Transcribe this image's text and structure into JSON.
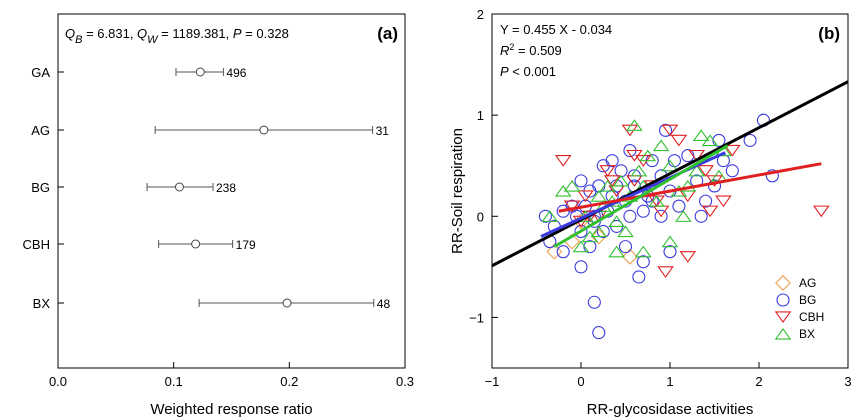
{
  "chart_data": [
    {
      "type": "forest",
      "panel_label": "(a)",
      "stats": {
        "QB": "6.831",
        "QW": "1189.381",
        "P": "0.328"
      },
      "xlabel": "Weighted response ratio",
      "xlim": [
        0.0,
        0.3
      ],
      "xticks": [
        "0.0",
        "0.1",
        "0.2",
        "0.3"
      ],
      "categories": [
        "GA",
        "AG",
        "BG",
        "CBH",
        "BX"
      ],
      "rows": [
        {
          "label": "GA",
          "mean": 0.123,
          "lo": 0.102,
          "hi": 0.143,
          "n": "496"
        },
        {
          "label": "AG",
          "mean": 0.178,
          "lo": 0.084,
          "hi": 0.272,
          "n": "31"
        },
        {
          "label": "BG",
          "mean": 0.105,
          "lo": 0.077,
          "hi": 0.134,
          "n": "238"
        },
        {
          "label": "CBH",
          "mean": 0.119,
          "lo": 0.087,
          "hi": 0.151,
          "n": "179"
        },
        {
          "label": "BX",
          "mean": 0.198,
          "lo": 0.122,
          "hi": 0.273,
          "n": "48"
        }
      ]
    },
    {
      "type": "scatter",
      "panel_label": "(b)",
      "equation": "Y = 0.455 X - 0.034",
      "r2_prefix": "R",
      "r2_value": " = 0.509",
      "p_prefix": "P",
      "p_value": " < 0.001",
      "xlabel": "RR-glycosidase activities",
      "ylabel": "RR-Soil respiration",
      "xlim": [
        -1,
        3
      ],
      "ylim": [
        -1.5,
        2
      ],
      "xticks": [
        "-1",
        "0",
        "1",
        "2",
        "3"
      ],
      "yticks": [
        "-1",
        "0",
        "1",
        "2"
      ],
      "legend_position": "bottom-right",
      "overall_fit": {
        "slope": 0.455,
        "intercept": -0.034,
        "x_range": [
          -1,
          3
        ],
        "color": "#000000"
      },
      "series": [
        {
          "name": "AG",
          "marker": "diamond",
          "color": "#f0a050",
          "points": [
            [
              -0.3,
              -0.35
            ],
            [
              -0.1,
              -0.25
            ],
            [
              0.0,
              -0.05
            ],
            [
              0.2,
              -0.2
            ],
            [
              0.55,
              -0.4
            ]
          ],
          "fit": null
        },
        {
          "name": "BG",
          "marker": "circle",
          "color": "#3a3ae0",
          "points": [
            [
              -0.4,
              0.0
            ],
            [
              -0.35,
              -0.25
            ],
            [
              -0.3,
              -0.1
            ],
            [
              -0.2,
              0.05
            ],
            [
              -0.2,
              -0.35
            ],
            [
              -0.1,
              0.1
            ],
            [
              -0.05,
              0.0
            ],
            [
              0.0,
              0.35
            ],
            [
              0.0,
              -0.15
            ],
            [
              0.0,
              -0.5
            ],
            [
              0.05,
              0.1
            ],
            [
              0.1,
              -0.3
            ],
            [
              0.1,
              0.25
            ],
            [
              0.15,
              0.0
            ],
            [
              0.15,
              -0.05
            ],
            [
              0.15,
              -0.85
            ],
            [
              0.2,
              -1.15
            ],
            [
              0.2,
              0.3
            ],
            [
              0.25,
              0.5
            ],
            [
              0.25,
              -0.15
            ],
            [
              0.3,
              0.05
            ],
            [
              0.35,
              0.2
            ],
            [
              0.35,
              0.55
            ],
            [
              0.4,
              -0.1
            ],
            [
              0.4,
              0.3
            ],
            [
              0.45,
              0.45
            ],
            [
              0.5,
              -0.3
            ],
            [
              0.5,
              0.15
            ],
            [
              0.55,
              0.0
            ],
            [
              0.55,
              0.65
            ],
            [
              0.6,
              0.4
            ],
            [
              0.6,
              0.3
            ],
            [
              0.65,
              -0.6
            ],
            [
              0.7,
              0.05
            ],
            [
              0.7,
              -0.45
            ],
            [
              0.75,
              0.2
            ],
            [
              0.8,
              0.55
            ],
            [
              0.8,
              0.15
            ],
            [
              0.9,
              0.0
            ],
            [
              0.9,
              0.4
            ],
            [
              0.95,
              0.85
            ],
            [
              1.0,
              0.25
            ],
            [
              1.0,
              -0.35
            ],
            [
              1.05,
              0.55
            ],
            [
              1.1,
              0.1
            ],
            [
              1.2,
              0.6
            ],
            [
              1.3,
              0.35
            ],
            [
              1.35,
              0.0
            ],
            [
              1.4,
              0.15
            ],
            [
              1.5,
              0.3
            ],
            [
              1.55,
              0.75
            ],
            [
              1.6,
              0.55
            ],
            [
              1.7,
              0.45
            ],
            [
              1.9,
              0.75
            ],
            [
              2.05,
              0.95
            ],
            [
              2.15,
              0.4
            ]
          ],
          "fit": {
            "x_range": [
              -0.45,
              1.62
            ],
            "y_range": [
              -0.2,
              0.63
            ]
          }
        },
        {
          "name": "CBH",
          "marker": "triangle-down",
          "color": "#e02020",
          "points": [
            [
              -0.2,
              0.55
            ],
            [
              -0.1,
              0.1
            ],
            [
              0.0,
              -0.05
            ],
            [
              0.05,
              0.2
            ],
            [
              0.1,
              0.0
            ],
            [
              0.2,
              0.0
            ],
            [
              0.3,
              0.45
            ],
            [
              0.35,
              0.35
            ],
            [
              0.4,
              0.25
            ],
            [
              0.55,
              0.85
            ],
            [
              0.6,
              0.6
            ],
            [
              0.6,
              0.35
            ],
            [
              0.7,
              0.55
            ],
            [
              0.8,
              0.3
            ],
            [
              0.85,
              0.15
            ],
            [
              0.9,
              0.05
            ],
            [
              0.95,
              -0.55
            ],
            [
              1.0,
              0.85
            ],
            [
              1.1,
              0.75
            ],
            [
              1.2,
              0.2
            ],
            [
              1.2,
              -0.4
            ],
            [
              1.3,
              0.6
            ],
            [
              1.4,
              0.45
            ],
            [
              1.45,
              0.05
            ],
            [
              1.5,
              0.35
            ],
            [
              1.6,
              0.15
            ],
            [
              1.7,
              0.65
            ],
            [
              2.7,
              0.05
            ]
          ],
          "fit": {
            "x_range": [
              -0.25,
              2.7
            ],
            "y_range": [
              0.05,
              0.52
            ]
          }
        },
        {
          "name": "BX",
          "marker": "triangle-up",
          "color": "#30c030",
          "points": [
            [
              -0.35,
              0.0
            ],
            [
              -0.2,
              0.25
            ],
            [
              -0.1,
              0.3
            ],
            [
              0.0,
              -0.3
            ],
            [
              0.05,
              0.0
            ],
            [
              0.1,
              -0.2
            ],
            [
              0.2,
              0.2
            ],
            [
              0.25,
              0.1
            ],
            [
              0.3,
              0.3
            ],
            [
              0.35,
              0.15
            ],
            [
              0.4,
              -0.05
            ],
            [
              0.45,
              0.35
            ],
            [
              0.5,
              -0.15
            ],
            [
              0.55,
              0.2
            ],
            [
              0.6,
              0.9
            ],
            [
              0.65,
              0.45
            ],
            [
              0.7,
              0.3
            ],
            [
              0.75,
              0.6
            ],
            [
              0.85,
              0.15
            ],
            [
              0.9,
              0.7
            ],
            [
              1.0,
              0.5
            ],
            [
              1.1,
              0.25
            ],
            [
              1.15,
              0.0
            ],
            [
              1.2,
              0.3
            ],
            [
              1.3,
              0.45
            ],
            [
              1.35,
              0.8
            ],
            [
              1.45,
              0.75
            ],
            [
              1.55,
              0.4
            ],
            [
              1.6,
              0.65
            ],
            [
              1.0,
              -0.25
            ],
            [
              0.7,
              -0.35
            ],
            [
              0.4,
              -0.35
            ],
            [
              0.2,
              -0.15
            ]
          ],
          "fit": {
            "x_range": [
              -0.3,
              1.65
            ],
            "y_range": [
              -0.3,
              0.7
            ]
          }
        }
      ]
    }
  ]
}
